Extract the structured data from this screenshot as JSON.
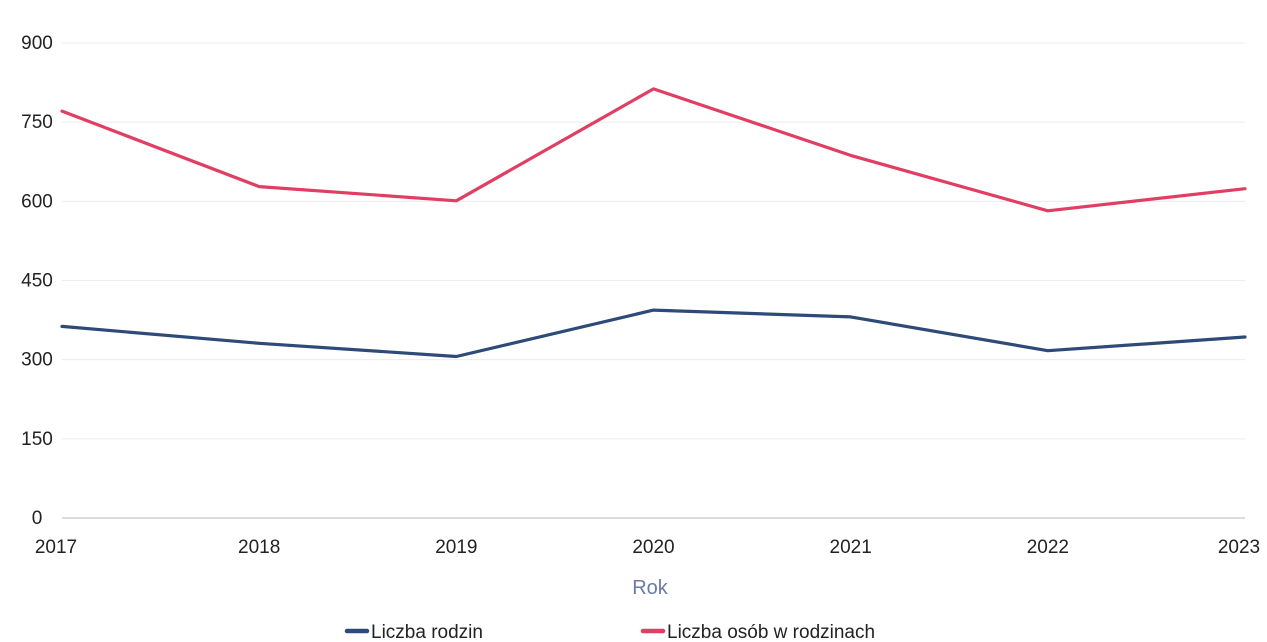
{
  "chart_data": {
    "type": "line",
    "title": "",
    "xlabel": "Rok",
    "ylabel": "",
    "categories": [
      "2017",
      "2018",
      "2019",
      "2020",
      "2021",
      "2022",
      "2023"
    ],
    "ylim": [
      0,
      900
    ],
    "yticks": [
      0,
      150,
      300,
      450,
      600,
      750,
      900
    ],
    "grid": "horizontal, faint",
    "legend_position": "bottom-center",
    "series": [
      {
        "name": "Liczba rodzin",
        "color": "#2e4a78",
        "values": [
          363,
          331,
          306,
          394,
          381,
          317,
          343
        ]
      },
      {
        "name": "Liczba osób w rodzinach",
        "color": "#e03e62",
        "values": [
          771,
          628,
          601,
          813,
          687,
          582,
          624
        ]
      }
    ]
  }
}
